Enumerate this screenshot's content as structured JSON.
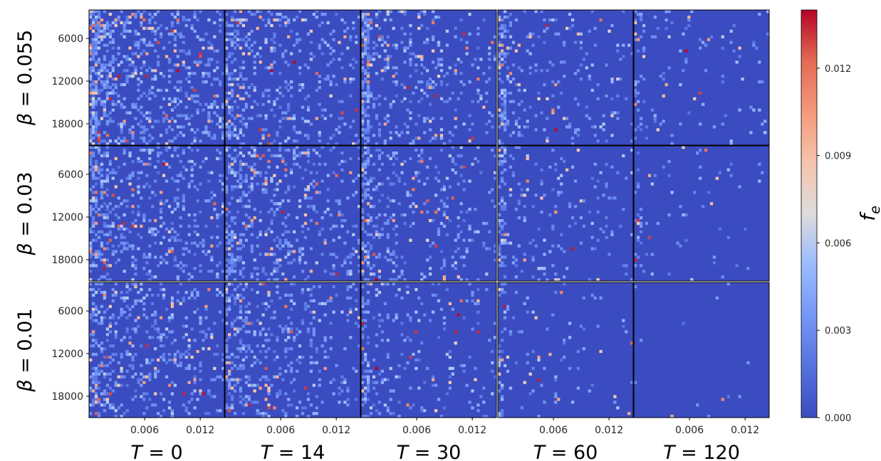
{
  "chart_data": {
    "type": "heatmap",
    "description_units": "grid of 3x5 heatmaps",
    "columns": [
      {
        "label_math": "T",
        "label_value": "0"
      },
      {
        "label_math": "T",
        "label_value": "14"
      },
      {
        "label_math": "T",
        "label_value": "30"
      },
      {
        "label_math": "T",
        "label_value": "60"
      },
      {
        "label_math": "T",
        "label_value": "120"
      }
    ],
    "rows": [
      {
        "label_math": "β",
        "label_value": "0.055"
      },
      {
        "label_math": "β",
        "label_value": "0.03"
      },
      {
        "label_math": "β",
        "label_value": "0.01"
      }
    ],
    "x_ticks": [
      "0.006",
      "0.012"
    ],
    "x_tick_values": [
      0.006,
      0.012
    ],
    "xlim": [
      0,
      0.0146
    ],
    "y_ticks": [
      "6000",
      "12000",
      "18000"
    ],
    "y_tick_values": [
      6000,
      12000,
      18000
    ],
    "ylim": [
      21000,
      2000
    ],
    "colorbar": {
      "label_math": "f",
      "label_sub": "e",
      "ticks": [
        "0.000",
        "0.003",
        "0.006",
        "0.009",
        "0.012"
      ],
      "tick_values": [
        0,
        0.003,
        0.006,
        0.009,
        0.012
      ],
      "range": [
        0,
        0.014
      ],
      "colormap": "coolwarm",
      "low_color": "#3b4cc0",
      "mid_color": "#dddcdc",
      "high_color": "#b40426"
    },
    "density_by_panel": [
      [
        0.3,
        0.2,
        0.17,
        0.11,
        0.05
      ],
      [
        0.24,
        0.22,
        0.14,
        0.08,
        0.03
      ],
      [
        0.22,
        0.19,
        0.1,
        0.05,
        0.004
      ]
    ],
    "grid": false
  }
}
